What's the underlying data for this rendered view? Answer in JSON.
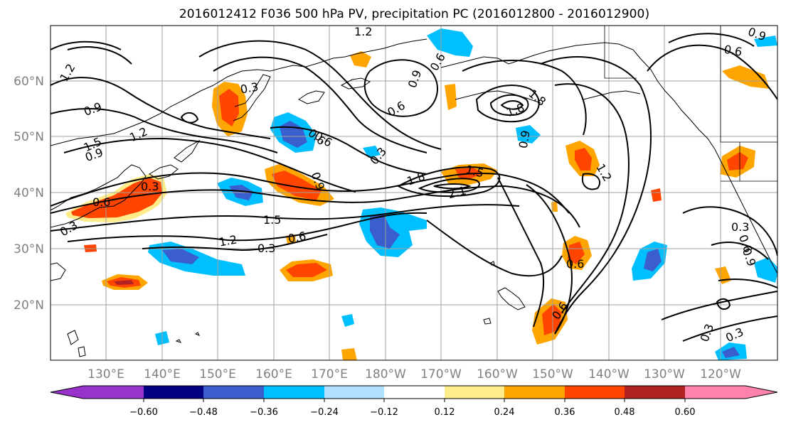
{
  "title": "2016012412 F036 500 hPa PV, precipitation PC (2016012800 - 2016012900)",
  "map": {
    "lat_labels": [
      "60°N",
      "50°N",
      "40°N",
      "30°N",
      "20°N"
    ],
    "lon_labels": [
      "130°E",
      "140°E",
      "150°E",
      "160°E",
      "170°E",
      "180°W",
      "170°W",
      "160°W",
      "150°W",
      "140°W",
      "130°W",
      "120°W"
    ],
    "contour_labels": [
      "1.2",
      "0.9",
      "1.5",
      "0.9",
      "1.2",
      "0.3",
      "0.6",
      "1.5",
      "1.2",
      "0.3",
      "0.6",
      "0.3",
      "0.6",
      "0.9",
      "0.6",
      "0.3",
      "1.8",
      "2.1",
      "1.5",
      "1.8",
      "1.8",
      "0.9",
      "1.2",
      "0.6",
      "0.6",
      "0.3",
      "0.6",
      "0.3",
      "0.3",
      "0.6",
      "0.9",
      "0.6",
      "1.2",
      "0.3",
      "0.6",
      "0.9",
      "0.9"
    ]
  },
  "colorbar": {
    "ticks": [
      "−0.60",
      "−0.48",
      "−0.36",
      "−0.24",
      "−0.12",
      "0.12",
      "0.24",
      "0.36",
      "0.48",
      "0.60"
    ],
    "colors": [
      "#9932cc",
      "#000080",
      "#3a5fcd",
      "#00bfff",
      "#b0e2ff",
      "#ffffff",
      "#ffec8b",
      "#ffa500",
      "#ff4500",
      "#b22222",
      "#ff82ab"
    ]
  },
  "fill_colors": {
    "orange": "#ffa500",
    "red_orange": "#ff4500",
    "dark_red": "#b22222",
    "light_yellow": "#ffec8b",
    "light_blue": "#b0e2ff",
    "sky_blue": "#00bfff",
    "royal_blue": "#3a5fcd",
    "navy": "#000080"
  }
}
